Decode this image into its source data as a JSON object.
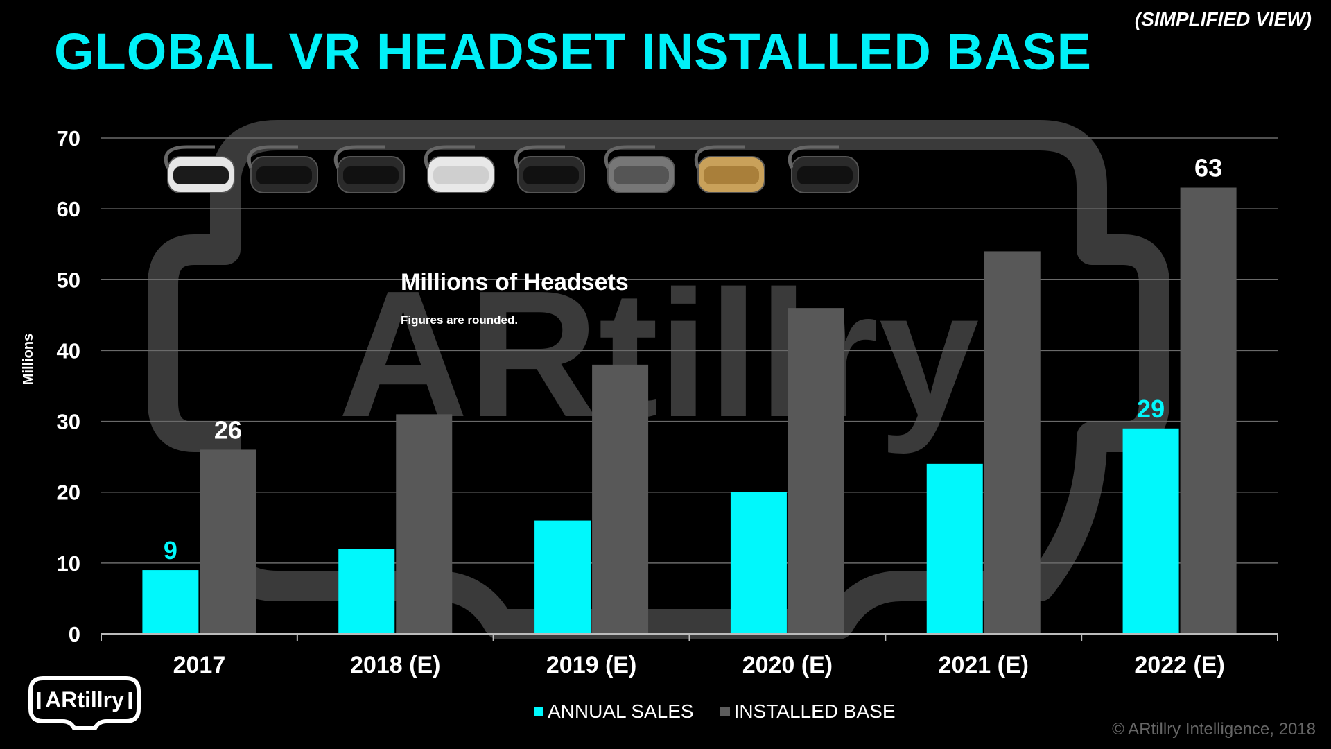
{
  "header": {
    "title": "GLOBAL VR HEADSET INSTALLED BASE",
    "subtitle": "(SIMPLIFIED VIEW)"
  },
  "footer": {
    "logo_text": "ARtillry",
    "copyright": "© ARtillry Intelligence, 2018"
  },
  "watermark": {
    "text": "ARtillry"
  },
  "colors": {
    "annual_sales": "#00f8fc",
    "installed_base": "#585858",
    "title": "#00f0f8",
    "grid": "#6a6a6a"
  },
  "devices": [
    "playstation-vr-headset-icon",
    "htc-vive-headset-icon",
    "oculus-rift-headset-icon",
    "oculus-go-headset-icon",
    "gear-vr-headset-icon",
    "daydream-view-headset-icon",
    "google-cardboard-icon",
    "windows-mr-headset-icon"
  ],
  "chart_data": {
    "type": "bar",
    "title": "Millions of Headsets",
    "note": "Figures are rounded.",
    "ylabel": "Millions",
    "xlabel": "",
    "ylim": [
      0,
      70
    ],
    "yticks": [
      0,
      10,
      20,
      30,
      40,
      50,
      60,
      70
    ],
    "grid": true,
    "legend_position": "bottom",
    "categories": [
      "2017",
      "2018 (E)",
      "2019 (E)",
      "2020 (E)",
      "2021 (E)",
      "2022 (E)"
    ],
    "series": [
      {
        "name": "ANNUAL SALES",
        "values": [
          9,
          12,
          16,
          20,
          24,
          29
        ],
        "labels": [
          "9",
          "",
          "",
          "",
          "",
          "29"
        ]
      },
      {
        "name": "INSTALLED BASE",
        "values": [
          26,
          31,
          38,
          46,
          54,
          63
        ],
        "labels": [
          "26",
          "",
          "",
          "",
          "",
          "63"
        ]
      }
    ]
  }
}
